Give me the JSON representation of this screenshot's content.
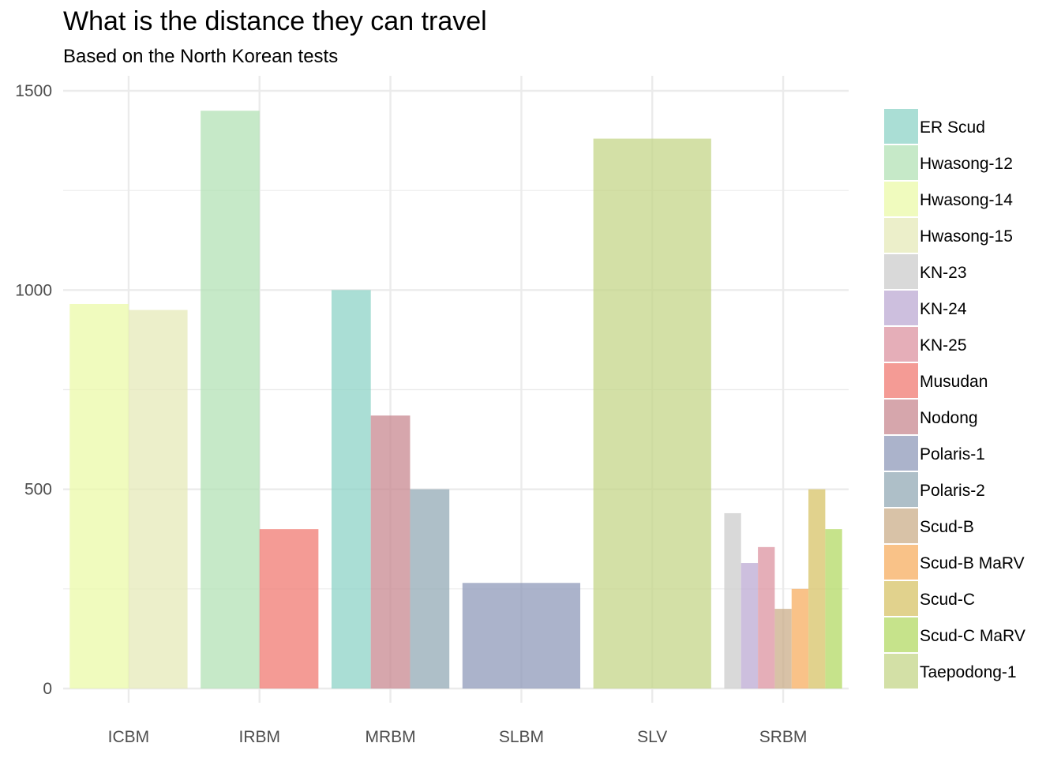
{
  "header": {
    "title": "What is the distance they can travel",
    "subtitle": "Based on the North Korean tests"
  },
  "colors": {
    "ER Scud": "#8dd3c7",
    "Hwasong-12": "#b3e2b6",
    "Hwasong-14": "#ebf9a8",
    "Hwasong-15": "#e6e9b8",
    "KN-23": "#cccccc",
    "KN-24": "#bcaad3",
    "KN-25": "#dc93a0",
    "Musudan": "#f07a72",
    "Nodong": "#c88890",
    "Polaris-1": "#8f9aba",
    "Polaris-2": "#93a9b5",
    "Scud-B": "#cbae8a",
    "Scud-B MaRV": "#f7ae60",
    "Scud-C": "#d7c367",
    "Scud-C MaRV": "#b3d964",
    "Taepodong-1": "#c4d688",
    "grid": "#ebebeb",
    "tick_text": "#4d4d4d"
  },
  "chart_data": {
    "type": "bar",
    "title": "What is the distance they can travel",
    "subtitle": "Based on the North Korean tests",
    "xlabel": "",
    "ylabel": "",
    "categories": [
      "ICBM",
      "IRBM",
      "MRBM",
      "SLBM",
      "SLV",
      "SRBM"
    ],
    "ylim": [
      0,
      1500
    ],
    "yticks": [
      0,
      500,
      1000,
      1500
    ],
    "grid": true,
    "legend_position": "right",
    "legend": [
      "ER Scud",
      "Hwasong-12",
      "Hwasong-14",
      "Hwasong-15",
      "KN-23",
      "KN-24",
      "KN-25",
      "Musudan",
      "Nodong",
      "Polaris-1",
      "Polaris-2",
      "Scud-B",
      "Scud-B MaRV",
      "Scud-C",
      "Scud-C MaRV",
      "Taepodong-1"
    ],
    "bars": {
      "ICBM": [
        {
          "name": "Hwasong-14",
          "value": 965
        },
        {
          "name": "Hwasong-15",
          "value": 950
        }
      ],
      "IRBM": [
        {
          "name": "Hwasong-12",
          "value": 1450
        },
        {
          "name": "Musudan",
          "value": 400
        }
      ],
      "MRBM": [
        {
          "name": "ER Scud",
          "value": 1000
        },
        {
          "name": "Nodong",
          "value": 685
        },
        {
          "name": "Polaris-2",
          "value": 500
        }
      ],
      "SLBM": [
        {
          "name": "Polaris-1",
          "value": 265
        }
      ],
      "SLV": [
        {
          "name": "Taepodong-1",
          "value": 1380
        }
      ],
      "SRBM": [
        {
          "name": "KN-23",
          "value": 440
        },
        {
          "name": "KN-24",
          "value": 315
        },
        {
          "name": "KN-25",
          "value": 355
        },
        {
          "name": "Scud-B",
          "value": 200
        },
        {
          "name": "Scud-B MaRV",
          "value": 250
        },
        {
          "name": "Scud-C",
          "value": 500
        },
        {
          "name": "Scud-C MaRV",
          "value": 400
        }
      ]
    }
  }
}
